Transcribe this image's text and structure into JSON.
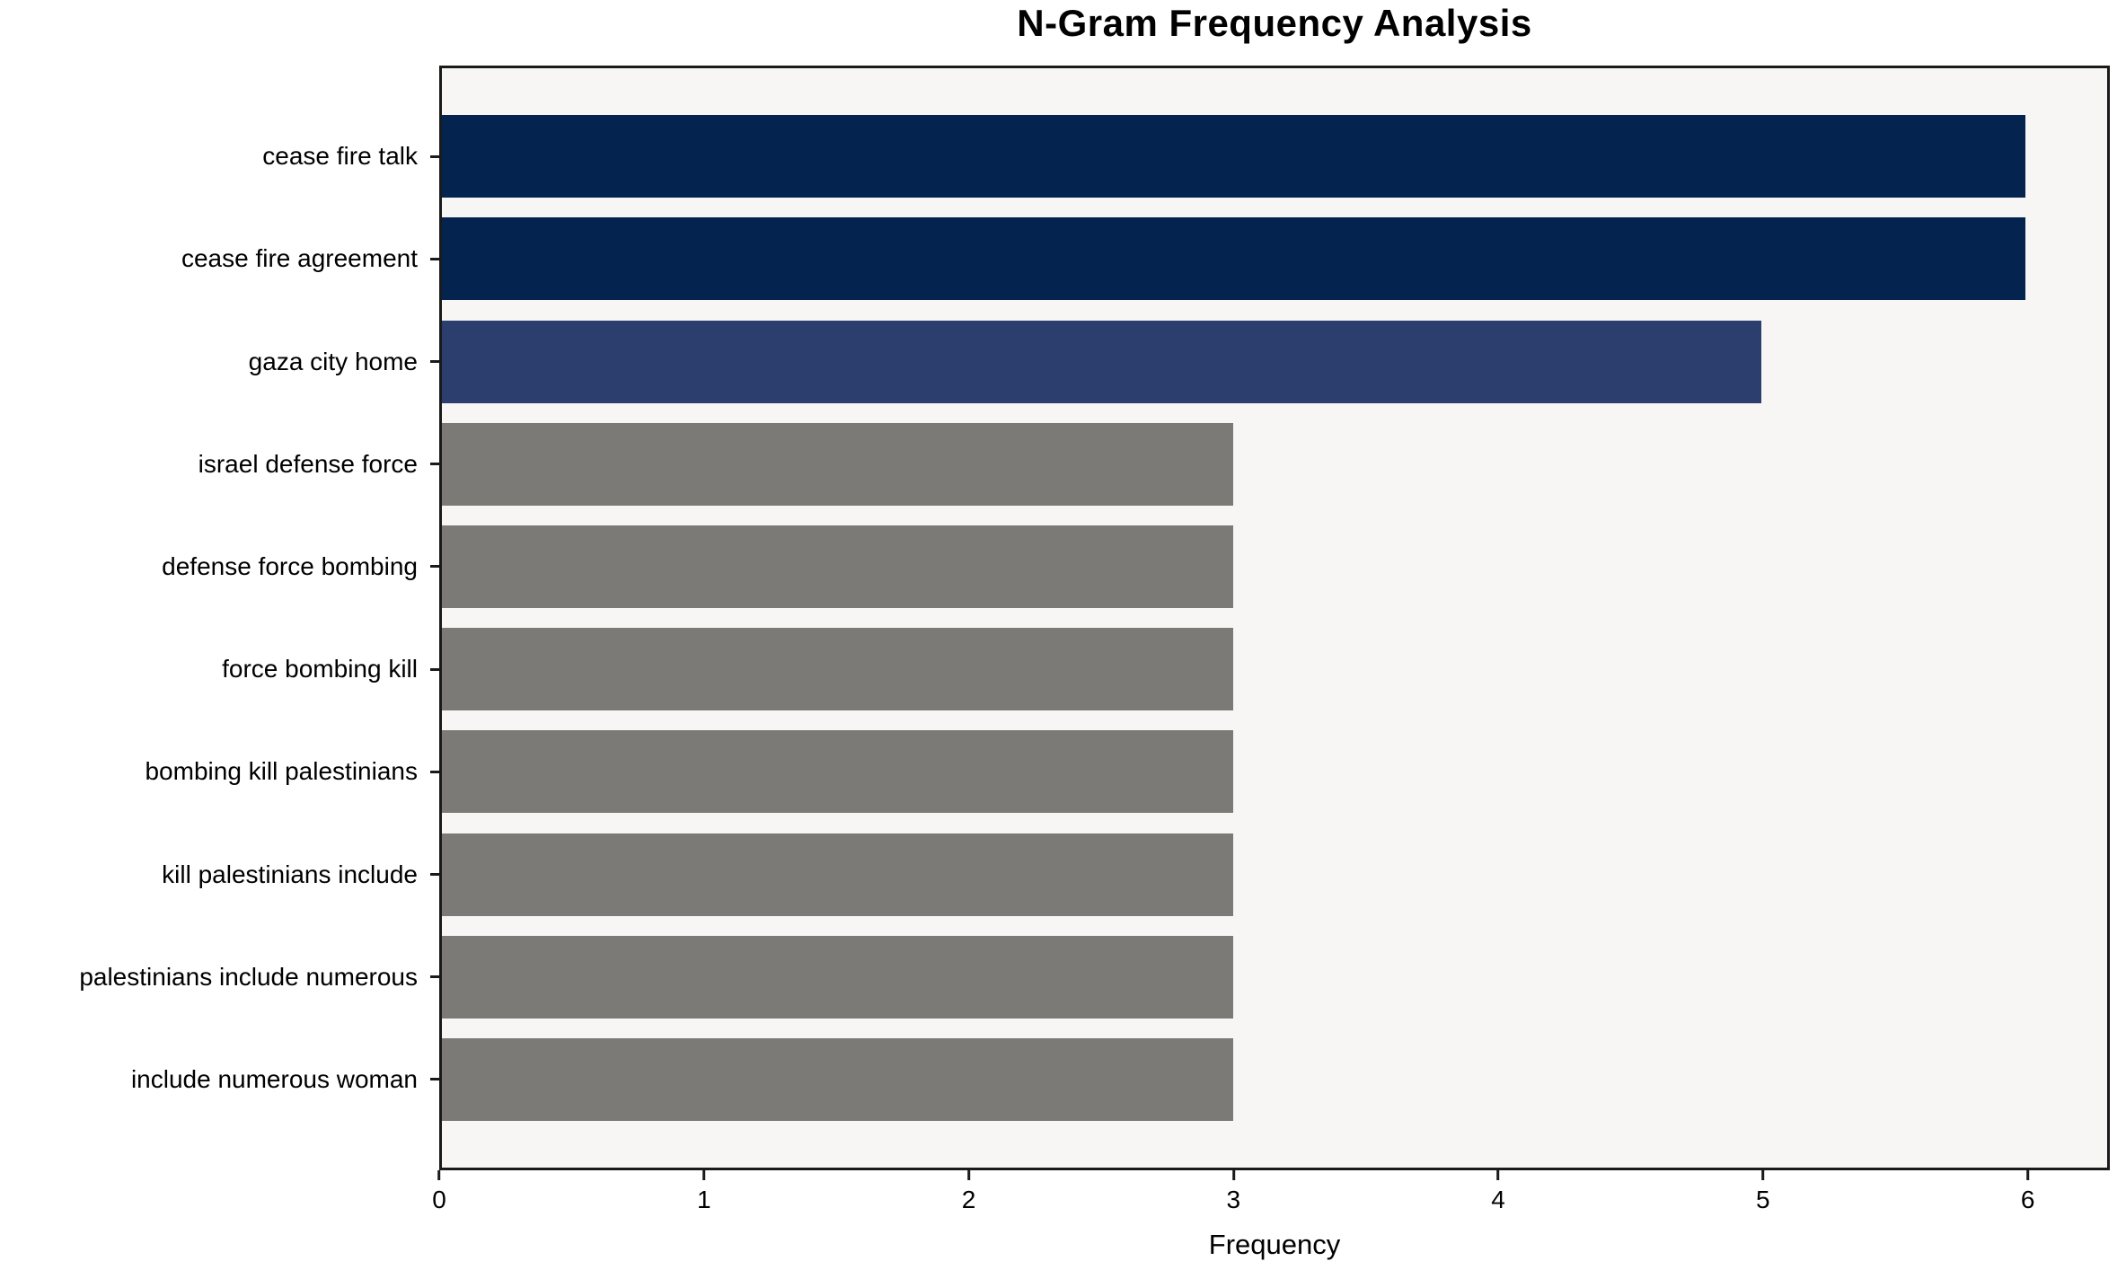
{
  "chart_data": {
    "type": "bar",
    "orientation": "horizontal",
    "title": "N-Gram Frequency Analysis",
    "xlabel": "Frequency",
    "ylabel": "",
    "categories": [
      "cease fire talk",
      "cease fire agreement",
      "gaza city home",
      "israel defense force",
      "defense force bombing",
      "force bombing kill",
      "bombing kill palestinians",
      "kill palestinians include",
      "palestinians include numerous",
      "include numerous woman"
    ],
    "values": [
      6,
      6,
      5,
      3,
      3,
      3,
      3,
      3,
      3,
      3
    ],
    "bar_colors": [
      "#04234F",
      "#04234F",
      "#2C3E6D",
      "#7B7A76",
      "#7B7A76",
      "#7B7A76",
      "#7B7A76",
      "#7B7A76",
      "#7B7A76",
      "#7B7A76"
    ],
    "xticks": [
      0,
      1,
      2,
      3,
      4,
      5,
      6
    ],
    "xlim": [
      0,
      6.31
    ],
    "grid": false,
    "legend": null,
    "plot_background": "#F7F6F5",
    "spine_color": "#1A1A1A",
    "text_color": "#000000"
  }
}
